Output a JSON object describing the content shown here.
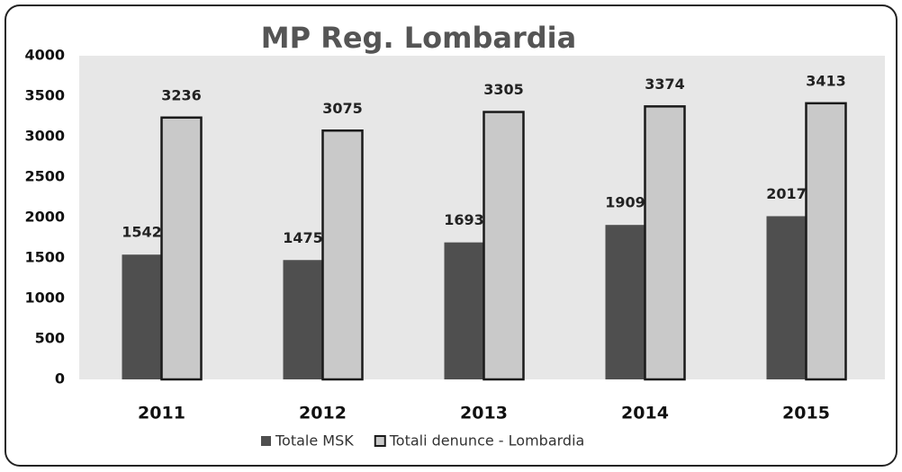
{
  "chart_data": {
    "type": "bar",
    "title": "MP Reg. Lombardia",
    "categories": [
      "2011",
      "2012",
      "2013",
      "2014",
      "2015"
    ],
    "series": [
      {
        "name": "Totale MSK",
        "color": "#4f4f4f",
        "values": [
          1542,
          1475,
          1693,
          1909,
          2017
        ]
      },
      {
        "name": "Totali denunce - Lombardia",
        "color": "#c9c9c9",
        "edgecolor": "#1a1a1a",
        "values": [
          3236,
          3075,
          3305,
          3374,
          3413
        ]
      }
    ],
    "ylim": [
      0,
      4000
    ],
    "yticks": [
      0,
      500,
      1000,
      1500,
      2000,
      2500,
      3000,
      3500,
      4000
    ],
    "grid": false,
    "legend": "bottom"
  }
}
